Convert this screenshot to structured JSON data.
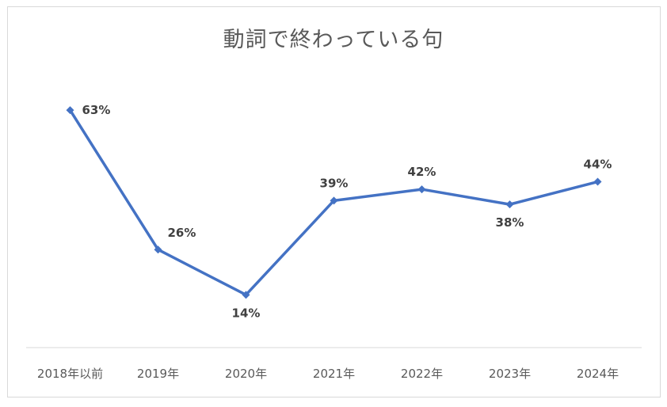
{
  "chart_data": {
    "type": "line",
    "title": "動詞で終わっている句",
    "categories": [
      "2018年以前",
      "2019年",
      "2020年",
      "2021年",
      "2022年",
      "2023年",
      "2024年"
    ],
    "values": [
      63,
      26,
      14,
      39,
      42,
      38,
      44
    ],
    "data_labels": [
      "63%",
      "26%",
      "14%",
      "39%",
      "42%",
      "38%",
      "44%"
    ],
    "unit": "%",
    "xlabel": "",
    "ylabel": "",
    "ylim": [
      0,
      70
    ],
    "grid": false,
    "legend": "none",
    "series_color": "#4472c4",
    "axis_color": "#d9d9d9"
  }
}
